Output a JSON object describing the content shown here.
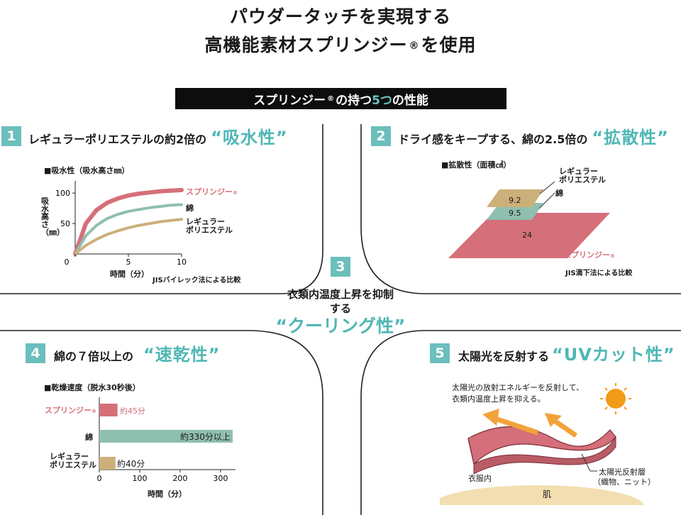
{
  "title_line1": "パウダータッチを実現する",
  "title_line2_main": "高機能素材スプリンジー",
  "title_line2_reg": "®",
  "title_line2_end": "を使用",
  "banner": {
    "pre": "スプリンジー",
    "reg": "®",
    "mid": "の持つ",
    "teal": "5つ",
    "post": "の性能"
  },
  "colors": {
    "teal": "#6bbfbc",
    "pink": "#d56f79",
    "tan": "#ccb07a",
    "green": "#8fbfae",
    "black": "#0d0d0d"
  },
  "s1": {
    "num": "1",
    "heading": "レギュラーポリエステルの約2倍の",
    "quote": "“吸水性”",
    "chart_title": "■吸水性（吸水高さ㎜）",
    "ylabel": "吸水高さ（㎜）",
    "xlabel": "時間（分）",
    "note": "JISバイレック法による比較",
    "xticks": [
      "0",
      "5",
      "10"
    ],
    "yticks": [
      "100",
      "50"
    ],
    "legend": {
      "springy": "スプリンジー",
      "reg": "®",
      "cotton": "綿",
      "regular1": "レギュラー",
      "regular2": "ポリエステル"
    }
  },
  "s2": {
    "num": "2",
    "heading": "ドライ感をキープする、綿の2.5倍の",
    "quote": "“拡散性”",
    "chart_title": "■拡散性（面積㎠）",
    "labels": {
      "regular1": "レギュラー",
      "regular2": "ポリエステル",
      "cotton": "綿",
      "springy": "スプリンジー",
      "reg": "®"
    },
    "values": {
      "regular": "9.2",
      "cotton": "9.5",
      "springy": "24"
    },
    "note": "JIS滴下法による比較"
  },
  "s3": {
    "num": "3",
    "line1": "衣類内温度上昇を抑制",
    "line2": "する",
    "quote": "“クーリング性”"
  },
  "s4": {
    "num": "4",
    "heading": "綿の７倍以上の",
    "quote": "“速乾性”",
    "chart_title": "■乾燥速度（脱水30秒後）",
    "cat_springy": "スプリンジー",
    "reg": "®",
    "cat_cotton": "綿",
    "cat_regular1": "レギュラー",
    "cat_regular2": "ポリエステル",
    "val_springy": "約45分",
    "val_cotton": "約330分以上",
    "val_regular": "約40分",
    "xticks": [
      "0",
      "100",
      "200",
      "300"
    ],
    "xlabel": "時間（分）"
  },
  "s5": {
    "num": "5",
    "heading": "太陽光を反射する",
    "quote": "“UVカット性”",
    "desc1": "太陽光の放射エネルギーを反射して、",
    "desc2": "衣類内温度上昇を抑える。",
    "inner": "衣服内",
    "layer1": "太陽光反射層",
    "layer2": "（織物、ニット）",
    "skin": "肌"
  },
  "chart_data": [
    {
      "type": "line",
      "x": [
        0,
        1,
        2,
        3,
        4,
        5,
        6,
        7,
        8,
        9,
        10
      ],
      "series": [
        {
          "name": "スプリンジー®",
          "values": [
            0,
            50,
            72,
            84,
            91,
            96,
            99,
            101,
            103,
            104,
            105
          ]
        },
        {
          "name": "綿",
          "values": [
            0,
            30,
            47,
            58,
            65,
            70,
            73,
            76,
            78,
            80,
            81
          ]
        },
        {
          "name": "レギュラーポリエステル",
          "values": [
            0,
            14,
            24,
            32,
            38,
            43,
            47,
            50,
            53,
            55,
            57
          ]
        }
      ],
      "title": "■吸水性（吸水高さ㎜）",
      "xlabel": "時間（分）",
      "ylabel": "吸水高さ（㎜）",
      "xlim": [
        0,
        10
      ],
      "ylim": [
        0,
        120
      ]
    },
    {
      "type": "bar",
      "categories": [
        "スプリンジー®",
        "綿",
        "レギュラーポリエステル"
      ],
      "values": [
        45,
        330,
        40
      ],
      "title": "■乾燥速度（脱水30秒後）",
      "xlabel": "時間（分）",
      "xlim": [
        0,
        330
      ]
    }
  ]
}
